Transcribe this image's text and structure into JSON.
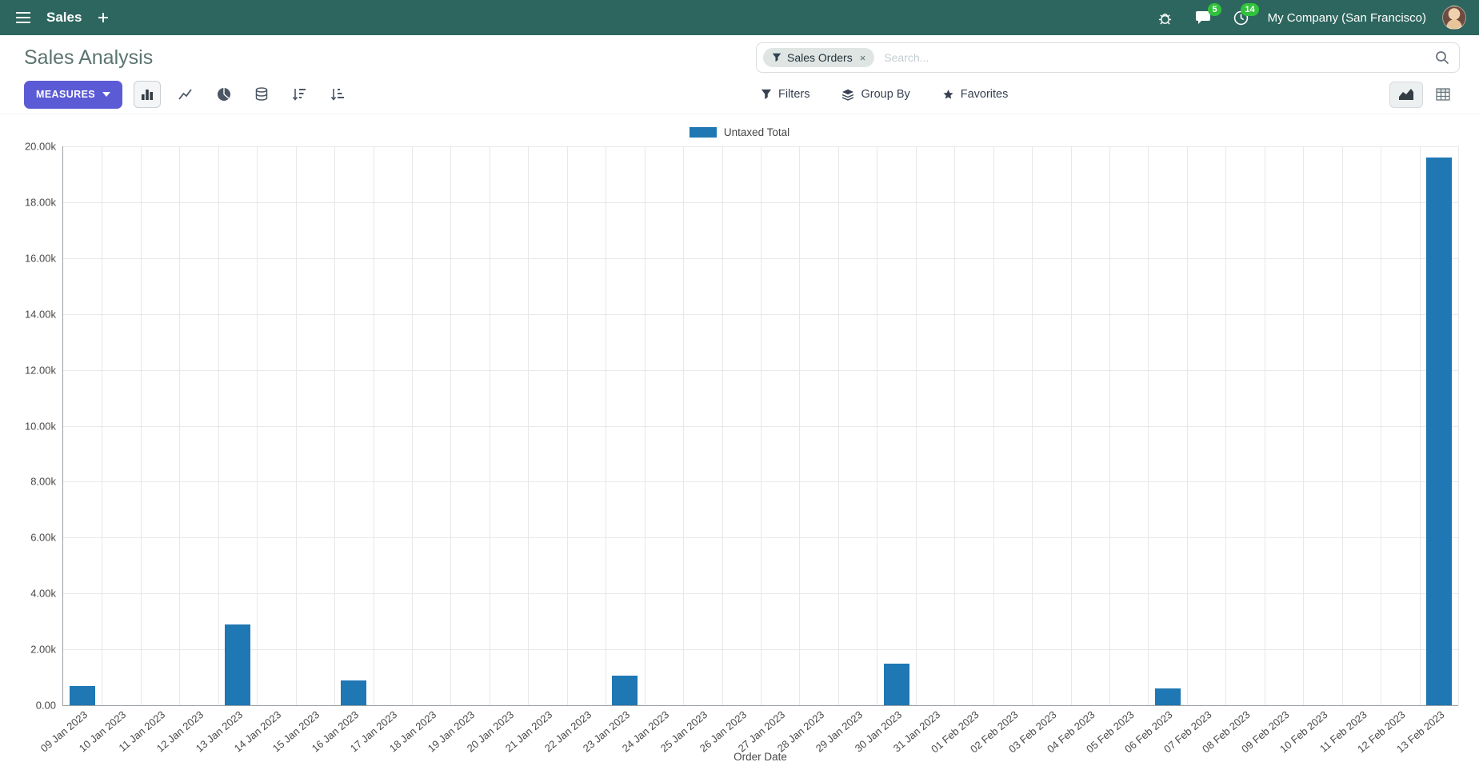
{
  "topbar": {
    "brand": "Sales",
    "company": "My Company (San Francisco)",
    "message_badge": "5",
    "activity_badge": "14"
  },
  "control_panel": {
    "title": "Sales Analysis",
    "measures_label": "MEASURES",
    "search": {
      "facet_label": "Sales Orders",
      "facet_remove": "×",
      "placeholder": "Search..."
    },
    "filters_label": "Filters",
    "group_by_label": "Group By",
    "favorites_label": "Favorites"
  },
  "chart_data": {
    "type": "bar",
    "title": "",
    "series_name": "Untaxed Total",
    "xlabel": "Order Date",
    "ylabel": "",
    "ylim": [
      0,
      20000
    ],
    "grid": true,
    "legend_position": "top",
    "bar_color": "#1f77b4",
    "categories": [
      "09 Jan 2023",
      "10 Jan 2023",
      "11 Jan 2023",
      "12 Jan 2023",
      "13 Jan 2023",
      "14 Jan 2023",
      "15 Jan 2023",
      "16 Jan 2023",
      "17 Jan 2023",
      "18 Jan 2023",
      "19 Jan 2023",
      "20 Jan 2023",
      "21 Jan 2023",
      "22 Jan 2023",
      "23 Jan 2023",
      "24 Jan 2023",
      "25 Jan 2023",
      "26 Jan 2023",
      "27 Jan 2023",
      "28 Jan 2023",
      "29 Jan 2023",
      "30 Jan 2023",
      "31 Jan 2023",
      "01 Feb 2023",
      "02 Feb 2023",
      "03 Feb 2023",
      "04 Feb 2023",
      "05 Feb 2023",
      "06 Feb 2023",
      "07 Feb 2023",
      "08 Feb 2023",
      "09 Feb 2023",
      "10 Feb 2023",
      "11 Feb 2023",
      "12 Feb 2023",
      "13 Feb 2023"
    ],
    "values": [
      700,
      0,
      0,
      0,
      2900,
      0,
      0,
      900,
      0,
      0,
      0,
      0,
      0,
      0,
      1050,
      0,
      0,
      0,
      0,
      0,
      0,
      1500,
      0,
      0,
      0,
      0,
      0,
      0,
      600,
      0,
      0,
      0,
      0,
      0,
      0,
      19600
    ],
    "ytick_values": [
      0,
      2000,
      4000,
      6000,
      8000,
      10000,
      12000,
      14000,
      16000,
      18000,
      20000
    ],
    "ytick_labels": [
      "0.00",
      "2.00k",
      "4.00k",
      "6.00k",
      "8.00k",
      "10.00k",
      "12.00k",
      "14.00k",
      "16.00k",
      "18.00k",
      "20.00k"
    ]
  },
  "colors": {
    "topbar_bg": "#2d665e",
    "primary_button": "#5b5bd6",
    "badge_green": "#31c23c",
    "bar_blue": "#1f77b4"
  }
}
